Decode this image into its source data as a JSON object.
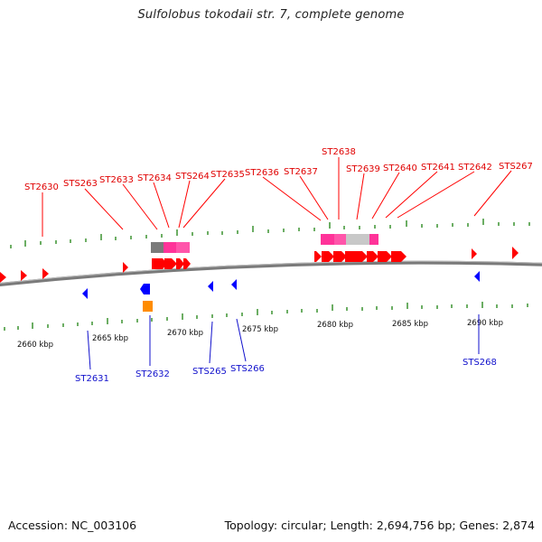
{
  "title": "Sulfolobus tokodaii str. 7, complete genome",
  "footer": {
    "accession": "Accession: NC_003106",
    "summary": "Topology: circular; Length: 2,694,756 bp; Genes: 2,874"
  },
  "colors": {
    "forward_gene": "#ff0000",
    "reverse_gene": "#0000ff",
    "label_forward": "#e00000",
    "label_reverse": "#1010cc",
    "tick": "#2e8b22",
    "backbone": "#7a7a7a",
    "feature_pink": "#ff3399",
    "feature_gray": "#888888",
    "feature_orange": "#ff8c00"
  },
  "scale_labels": [
    "2660 kbp",
    "2665 kbp",
    "2670 kbp",
    "2675 kbp",
    "2680 kbp",
    "2685 kbp",
    "2690 kbp"
  ],
  "top_labels": [
    "ST2630",
    "STS263",
    "ST2633",
    "ST2634",
    "STS264",
    "ST2635",
    "ST2636",
    "ST2637",
    "ST2638",
    "ST2639",
    "ST2640",
    "ST2641",
    "ST2642",
    "STS267"
  ],
  "bottom_labels": [
    "ST2631",
    "ST2632",
    "STS265",
    "STS266",
    "STS268"
  ]
}
